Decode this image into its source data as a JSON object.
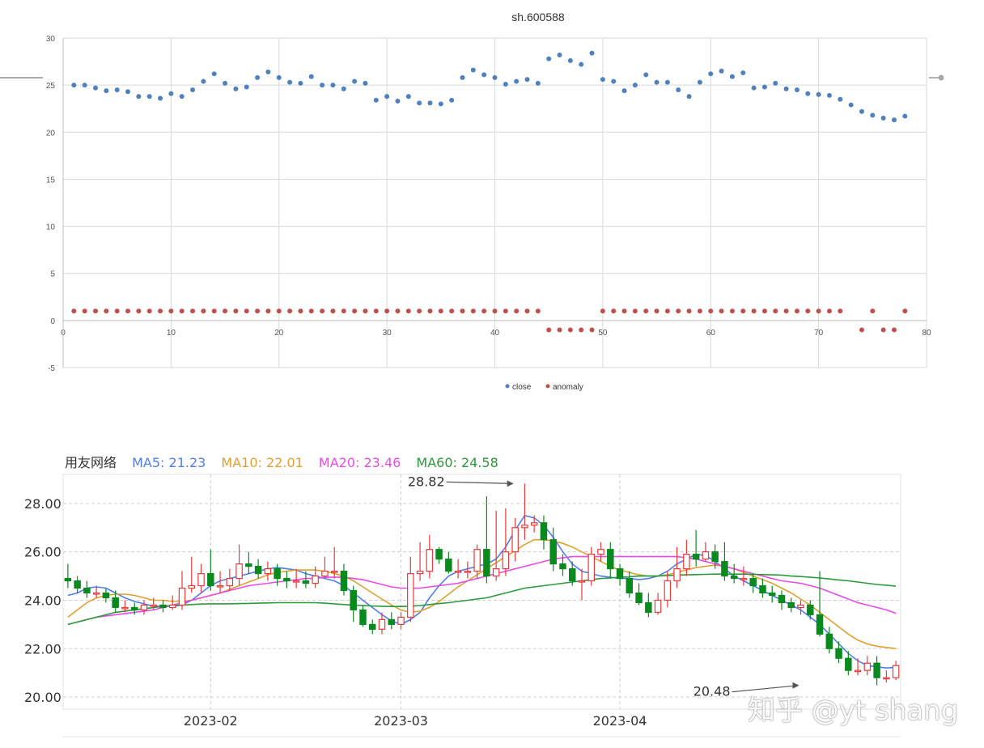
{
  "chart_data": [
    {
      "type": "scatter",
      "title": "sh.600588",
      "xlim": [
        0,
        80
      ],
      "ylim": [
        -5,
        30
      ],
      "xticks": [
        0,
        10,
        20,
        30,
        40,
        50,
        60,
        70,
        80
      ],
      "yticks": [
        -5,
        0,
        5,
        10,
        15,
        20,
        25,
        30
      ],
      "grid": true,
      "legend_position": "bottom",
      "series": [
        {
          "name": "close",
          "color": "#4f81bd",
          "x": [
            1,
            2,
            3,
            4,
            5,
            6,
            7,
            8,
            9,
            10,
            11,
            12,
            13,
            14,
            15,
            16,
            17,
            18,
            19,
            20,
            21,
            22,
            23,
            24,
            25,
            26,
            27,
            28,
            29,
            30,
            31,
            32,
            33,
            34,
            35,
            36,
            37,
            38,
            39,
            40,
            41,
            42,
            43,
            44,
            45,
            46,
            47,
            48,
            49,
            50,
            51,
            52,
            53,
            54,
            55,
            56,
            57,
            58,
            59,
            60,
            61,
            62,
            63,
            64,
            65,
            66,
            67,
            68,
            69,
            70,
            71,
            72,
            73,
            74,
            75,
            76,
            77,
            78
          ],
          "values": [
            25.0,
            25.0,
            24.7,
            24.4,
            24.5,
            24.3,
            23.8,
            23.8,
            23.6,
            24.1,
            23.8,
            24.5,
            25.4,
            26.2,
            25.2,
            24.6,
            24.8,
            25.8,
            26.4,
            25.8,
            25.3,
            25.2,
            25.9,
            25.0,
            25.0,
            24.6,
            25.4,
            25.2,
            23.4,
            23.8,
            23.3,
            23.8,
            23.1,
            23.1,
            23.0,
            23.4,
            25.8,
            26.6,
            26.1,
            25.8,
            25.1,
            25.4,
            25.6,
            25.2,
            27.8,
            28.2,
            27.6,
            27.2,
            28.4,
            25.6,
            25.4,
            24.4,
            25.0,
            26.1,
            25.3,
            25.3,
            24.5,
            23.8,
            25.3,
            26.2,
            26.5,
            25.9,
            26.3,
            24.7,
            24.8,
            25.2,
            24.6,
            24.5,
            24.1,
            24.0,
            23.9,
            23.5,
            22.9,
            22.2,
            21.8,
            21.5,
            21.3,
            21.7
          ]
        },
        {
          "name": "anomaly",
          "color": "#c0504d",
          "x": [
            1,
            2,
            3,
            4,
            5,
            6,
            7,
            8,
            9,
            10,
            11,
            12,
            13,
            14,
            15,
            16,
            17,
            18,
            19,
            20,
            21,
            22,
            23,
            24,
            25,
            26,
            27,
            28,
            29,
            30,
            31,
            32,
            33,
            34,
            35,
            36,
            37,
            38,
            39,
            40,
            41,
            42,
            43,
            44,
            45,
            46,
            47,
            48,
            49,
            50,
            51,
            52,
            53,
            54,
            55,
            56,
            57,
            58,
            59,
            60,
            61,
            62,
            63,
            64,
            65,
            66,
            67,
            68,
            69,
            70,
            71,
            72,
            74,
            75,
            76,
            77,
            78
          ],
          "values": [
            1,
            1,
            1,
            1,
            1,
            1,
            1,
            1,
            1,
            1,
            1,
            1,
            1,
            1,
            1,
            1,
            1,
            1,
            1,
            1,
            1,
            1,
            1,
            1,
            1,
            1,
            1,
            1,
            1,
            1,
            1,
            1,
            1,
            1,
            1,
            1,
            1,
            1,
            1,
            1,
            1,
            1,
            1,
            1,
            -1,
            -1,
            -1,
            -1,
            -1,
            1,
            1,
            1,
            1,
            1,
            1,
            1,
            1,
            1,
            1,
            1,
            1,
            1,
            1,
            1,
            1,
            1,
            1,
            1,
            1,
            1,
            1,
            1,
            -1,
            1,
            -1,
            -1,
            1
          ]
        }
      ]
    },
    {
      "type": "candlestick",
      "title": "用友网络",
      "ylim": [
        19.5,
        29.2
      ],
      "yticks": [
        "20.00",
        "22.00",
        "24.00",
        "26.00",
        "28.00"
      ],
      "xtick_labels": [
        "2023-02",
        "2023-03",
        "2023-04"
      ],
      "xtick_index": [
        15,
        35,
        58
      ],
      "grid": true,
      "legend_position": "top-left",
      "up_color": "#e83a3a",
      "down_color": "#0a8a1e",
      "indicators": [
        {
          "label": "MA5: 21.23",
          "color": "#4f7df0"
        },
        {
          "label": "MA10: 22.01",
          "color": "#e0a030"
        },
        {
          "label": "MA20: 23.46",
          "color": "#e94ae9"
        },
        {
          "label": "MA60: 24.58",
          "color": "#2a9a3a"
        }
      ],
      "annotations": [
        {
          "text": "28.82",
          "index": 47,
          "value": 28.82
        },
        {
          "text": "20.48",
          "index": 77,
          "value": 20.48
        }
      ],
      "watermark": "知乎 @yt shang",
      "open": [
        24.9,
        24.8,
        24.5,
        24.3,
        24.3,
        24.1,
        23.7,
        23.7,
        23.6,
        23.8,
        23.8,
        23.7,
        23.8,
        24.5,
        24.6,
        25.1,
        24.6,
        24.6,
        24.9,
        25.5,
        25.4,
        25.1,
        25.3,
        24.9,
        24.8,
        24.8,
        24.7,
        25.0,
        25.2,
        25.2,
        24.4,
        23.6,
        23.0,
        22.8,
        23.2,
        23.0,
        23.3,
        25.1,
        25.2,
        26.1,
        25.7,
        25.2,
        25.2,
        25.2,
        26.1,
        25.0,
        25.3,
        26.0,
        27.0,
        27.1,
        27.2,
        26.5,
        25.5,
        25.3,
        24.8,
        24.8,
        25.9,
        26.1,
        25.3,
        24.9,
        24.3,
        23.9,
        23.5,
        24.0,
        24.8,
        25.3,
        25.9,
        25.7,
        26.0,
        25.6,
        25.0,
        24.9,
        24.9,
        24.6,
        24.3,
        24.2,
        23.9,
        23.7,
        23.8,
        23.4,
        22.6,
        22.0,
        21.6,
        21.1,
        21.1,
        21.4,
        20.8,
        20.8
      ],
      "close": [
        24.8,
        24.5,
        24.3,
        24.3,
        24.1,
        23.7,
        23.7,
        23.6,
        23.8,
        23.8,
        23.7,
        23.8,
        24.5,
        24.6,
        25.1,
        24.6,
        24.6,
        24.9,
        25.5,
        25.4,
        25.1,
        25.3,
        24.9,
        24.8,
        24.8,
        24.7,
        25.0,
        25.2,
        25.2,
        24.4,
        23.6,
        23.0,
        22.8,
        23.2,
        23.0,
        23.3,
        25.1,
        25.2,
        26.1,
        25.7,
        25.2,
        25.2,
        25.2,
        26.1,
        25.0,
        25.3,
        26.0,
        27.0,
        27.1,
        27.2,
        26.5,
        25.5,
        25.3,
        24.8,
        24.8,
        25.9,
        26.1,
        25.3,
        24.9,
        24.3,
        23.9,
        23.5,
        24.0,
        24.8,
        25.3,
        25.9,
        25.7,
        26.0,
        25.6,
        25.0,
        24.9,
        24.9,
        24.6,
        24.3,
        24.2,
        23.9,
        23.7,
        23.8,
        23.4,
        22.6,
        22.0,
        21.6,
        21.1,
        21.1,
        21.4,
        20.8,
        20.8,
        21.3
      ],
      "high": [
        25.5,
        25.0,
        24.8,
        24.6,
        24.5,
        24.4,
        24.0,
        23.9,
        24.0,
        24.1,
        24.0,
        24.2,
        25.2,
        25.8,
        25.5,
        26.1,
        25.2,
        25.3,
        26.3,
        26.0,
        25.7,
        25.6,
        25.5,
        25.2,
        25.3,
        25.2,
        25.4,
        25.8,
        26.2,
        25.5,
        24.6,
        23.8,
        23.2,
        23.5,
        23.5,
        23.5,
        25.8,
        26.4,
        26.7,
        26.2,
        26.0,
        25.7,
        25.6,
        26.3,
        28.3,
        27.7,
        27.8,
        27.4,
        28.82,
        27.5,
        27.5,
        27.0,
        25.9,
        25.6,
        25.3,
        26.2,
        26.4,
        26.4,
        25.5,
        25.2,
        24.7,
        24.3,
        24.3,
        25.2,
        26.2,
        26.5,
        26.9,
        26.4,
        26.3,
        26.4,
        25.5,
        25.4,
        25.1,
        24.9,
        24.6,
        24.4,
        24.1,
        24.0,
        24.0,
        25.2,
        22.9,
        22.3,
        21.9,
        21.6,
        21.7,
        21.7,
        21.1,
        21.5
      ],
      "low": [
        24.5,
        24.3,
        24.1,
        24.1,
        23.9,
        23.5,
        23.5,
        23.4,
        23.4,
        23.6,
        23.5,
        23.6,
        23.6,
        24.3,
        24.3,
        24.4,
        24.3,
        24.4,
        24.6,
        25.1,
        24.9,
        24.8,
        24.6,
        24.5,
        24.5,
        24.5,
        24.5,
        24.9,
        24.9,
        24.2,
        23.1,
        22.9,
        22.6,
        22.6,
        22.8,
        22.8,
        23.1,
        24.8,
        24.9,
        25.5,
        25.1,
        24.9,
        24.9,
        24.9,
        24.7,
        24.8,
        25.0,
        25.6,
        26.5,
        26.8,
        26.1,
        25.2,
        25.0,
        24.6,
        24.0,
        24.6,
        25.6,
        24.9,
        24.6,
        24.1,
        23.8,
        23.3,
        23.4,
        23.7,
        24.5,
        25.0,
        25.4,
        25.6,
        25.3,
        24.8,
        24.7,
        24.6,
        24.3,
        24.1,
        23.9,
        23.6,
        23.5,
        23.4,
        23.2,
        22.5,
        21.8,
        21.4,
        20.9,
        20.9,
        20.9,
        20.48,
        20.6,
        20.7
      ],
      "ma5": [
        24.2,
        24.3,
        24.5,
        24.55,
        24.5,
        24.3,
        24.1,
        23.95,
        23.85,
        23.75,
        23.75,
        23.75,
        23.8,
        24.0,
        24.3,
        24.6,
        24.8,
        24.9,
        25.0,
        25.1,
        25.2,
        25.3,
        25.35,
        25.3,
        25.25,
        25.1,
        25.0,
        24.9,
        24.8,
        24.6,
        24.3,
        24.0,
        23.7,
        23.4,
        23.15,
        23.0,
        23.2,
        23.5,
        24.1,
        24.6,
        25.0,
        25.2,
        25.3,
        25.4,
        25.5,
        25.7,
        26.2,
        26.9,
        27.5,
        27.4,
        27.1,
        26.6,
        26.0,
        25.5,
        25.2,
        25.1,
        25.0,
        24.95,
        24.9,
        24.9,
        24.85,
        24.9,
        25.0,
        25.2,
        25.5,
        25.7,
        25.9,
        25.85,
        25.6,
        25.3,
        25.0,
        24.8,
        24.6,
        24.4,
        24.2,
        24.0,
        23.8,
        23.6,
        23.3,
        23.0,
        22.6,
        22.2,
        21.8,
        21.5,
        21.3,
        21.25,
        21.2,
        21.23
      ],
      "ma10": [
        23.3,
        23.6,
        23.9,
        24.1,
        24.2,
        24.25,
        24.25,
        24.2,
        24.1,
        24.0,
        24.0,
        23.95,
        23.95,
        24.0,
        24.1,
        24.2,
        24.3,
        24.45,
        24.6,
        24.75,
        24.9,
        25.05,
        25.15,
        25.2,
        25.25,
        25.25,
        25.25,
        25.2,
        25.1,
        25.0,
        24.8,
        24.55,
        24.3,
        24.05,
        23.8,
        23.6,
        23.5,
        23.55,
        23.7,
        23.95,
        24.25,
        24.55,
        24.8,
        25.05,
        25.3,
        25.55,
        25.8,
        26.05,
        26.3,
        26.5,
        26.5,
        26.45,
        26.35,
        26.2,
        26.0,
        25.8,
        25.6,
        25.4,
        25.25,
        25.15,
        25.05,
        25.0,
        25.0,
        25.05,
        25.15,
        25.25,
        25.35,
        25.4,
        25.45,
        25.4,
        25.3,
        25.15,
        25.0,
        24.85,
        24.7,
        24.5,
        24.3,
        24.05,
        23.8,
        23.5,
        23.2,
        22.9,
        22.6,
        22.35,
        22.2,
        22.1,
        22.05,
        22.01
      ],
      "ma20": [
        23.0,
        23.1,
        23.2,
        23.3,
        23.35,
        23.4,
        23.45,
        23.5,
        23.55,
        23.6,
        23.7,
        23.8,
        23.9,
        24.0,
        24.1,
        24.2,
        24.3,
        24.4,
        24.5,
        24.6,
        24.65,
        24.7,
        24.75,
        24.8,
        24.85,
        24.9,
        24.9,
        24.95,
        24.95,
        24.95,
        24.9,
        24.85,
        24.75,
        24.65,
        24.55,
        24.5,
        24.5,
        24.5,
        24.55,
        24.6,
        24.65,
        24.7,
        24.8,
        24.9,
        25.0,
        25.1,
        25.2,
        25.3,
        25.4,
        25.5,
        25.6,
        25.7,
        25.75,
        25.8,
        25.8,
        25.8,
        25.8,
        25.8,
        25.8,
        25.8,
        25.8,
        25.8,
        25.8,
        25.8,
        25.8,
        25.75,
        25.7,
        25.6,
        25.5,
        25.4,
        25.3,
        25.2,
        25.1,
        25.0,
        24.9,
        24.8,
        24.75,
        24.7,
        24.6,
        24.5,
        24.35,
        24.2,
        24.05,
        23.9,
        23.8,
        23.7,
        23.6,
        23.46
      ],
      "ma60": [
        23.0,
        23.1,
        23.2,
        23.3,
        23.4,
        23.5,
        23.55,
        23.6,
        23.65,
        23.7,
        23.75,
        23.78,
        23.8,
        23.82,
        23.84,
        23.85,
        23.85,
        23.85,
        23.86,
        23.87,
        23.88,
        23.89,
        23.9,
        23.9,
        23.9,
        23.9,
        23.9,
        23.88,
        23.85,
        23.82,
        23.8,
        23.78,
        23.76,
        23.75,
        23.74,
        23.74,
        23.75,
        23.78,
        23.82,
        23.86,
        23.9,
        23.95,
        24.0,
        24.05,
        24.1,
        24.2,
        24.3,
        24.4,
        24.5,
        24.55,
        24.6,
        24.65,
        24.7,
        24.75,
        24.8,
        24.85,
        24.9,
        24.92,
        24.95,
        24.97,
        25.0,
        25.0,
        25.0,
        25.02,
        25.04,
        25.05,
        25.06,
        25.07,
        25.08,
        25.08,
        25.08,
        25.08,
        25.07,
        25.06,
        25.05,
        25.04,
        25.0,
        24.98,
        24.95,
        24.92,
        24.88,
        24.84,
        24.8,
        24.75,
        24.7,
        24.65,
        24.62,
        24.58
      ]
    }
  ]
}
